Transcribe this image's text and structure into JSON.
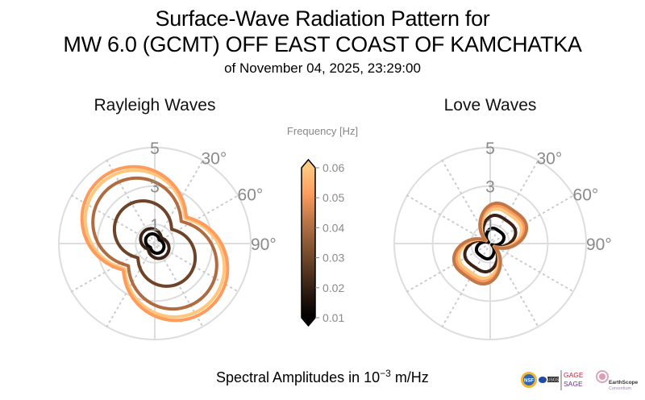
{
  "title": {
    "line1": "Surface-Wave Radiation Pattern for",
    "line2": "MW 6.0 (GCMT) OFF EAST COAST OF KAMCHATKA",
    "line3": "of November 04, 2025, 23:29:00"
  },
  "footer": {
    "prefix": "Spectral Amplitudes in 10",
    "exponent": "−3",
    "suffix": " m/Hz"
  },
  "logos": {
    "nsf": "NSF",
    "usgs": "USGS",
    "gage": "GAGE",
    "sage": "SAGE",
    "earthscope": "EarthScope",
    "consortium": "Consortium"
  },
  "chart_data": [
    {
      "type": "polar-line",
      "title": "Rayleigh Waves",
      "r_ticks": [
        "1",
        "3",
        "5"
      ],
      "theta_ticks": [
        "30°",
        "60°",
        "90°"
      ],
      "rlim": [
        0,
        5
      ],
      "theta_zero": "north",
      "theta_direction": "clockwise",
      "grid": true,
      "series": [
        {
          "frequency": 0.01,
          "max_amplitude": 0.55,
          "min_amplitude": 0.3,
          "axis_deg": 140,
          "color": "#000000"
        },
        {
          "frequency": 0.02,
          "max_amplitude": 0.85,
          "min_amplitude": 0.45,
          "axis_deg": 140,
          "color": "#3a2316"
        },
        {
          "frequency": 0.03,
          "max_amplitude": 2.45,
          "min_amplitude": 1.15,
          "axis_deg": 140,
          "color": "#6e4328"
        },
        {
          "frequency": 0.04,
          "max_amplitude": 3.75,
          "min_amplitude": 1.8,
          "axis_deg": 140,
          "color": "#b06c40"
        },
        {
          "frequency": 0.06,
          "max_amplitude": 4.2,
          "min_amplitude": 2.05,
          "axis_deg": 140,
          "color": "#ffc77e"
        },
        {
          "frequency": 0.05,
          "max_amplitude": 4.4,
          "min_amplitude": 2.15,
          "axis_deg": 140,
          "color": "#ff9b5c"
        }
      ]
    },
    {
      "type": "polar-line",
      "title": "Love Waves",
      "r_ticks": [
        "1",
        "3",
        "5"
      ],
      "theta_ticks": [
        "30°",
        "60°",
        "90°"
      ],
      "rlim": [
        0,
        5
      ],
      "theta_zero": "north",
      "theta_direction": "clockwise",
      "grid": true,
      "series": [
        {
          "frequency": 0.01,
          "max_amplitude": 0.95,
          "min_amplitude": 0.1,
          "axis_deg": 35,
          "color": "#000000"
        },
        {
          "frequency": 0.02,
          "max_amplitude": 1.75,
          "min_amplitude": 0.2,
          "axis_deg": 35,
          "color": "#3a2316"
        },
        {
          "frequency": 0.06,
          "max_amplitude": 2.15,
          "min_amplitude": 0.25,
          "axis_deg": 35,
          "color": "#ffc77e"
        },
        {
          "frequency": 0.05,
          "max_amplitude": 2.35,
          "min_amplitude": 0.28,
          "axis_deg": 35,
          "color": "#ff9b5c"
        },
        {
          "frequency": 0.04,
          "max_amplitude": 2.5,
          "min_amplitude": 0.3,
          "axis_deg": 35,
          "color": "#c07848"
        }
      ]
    }
  ],
  "colorbar": {
    "label": "Frequency [Hz]",
    "ticks": [
      "0.01",
      "0.02",
      "0.03",
      "0.04",
      "0.05",
      "0.06"
    ],
    "range": [
      0.01,
      0.06
    ],
    "extend": "both",
    "colors": [
      "#000000",
      "#2b1a10",
      "#5c3a22",
      "#8f5a36",
      "#c47a4a",
      "#ff9e5f",
      "#ffc880"
    ]
  }
}
